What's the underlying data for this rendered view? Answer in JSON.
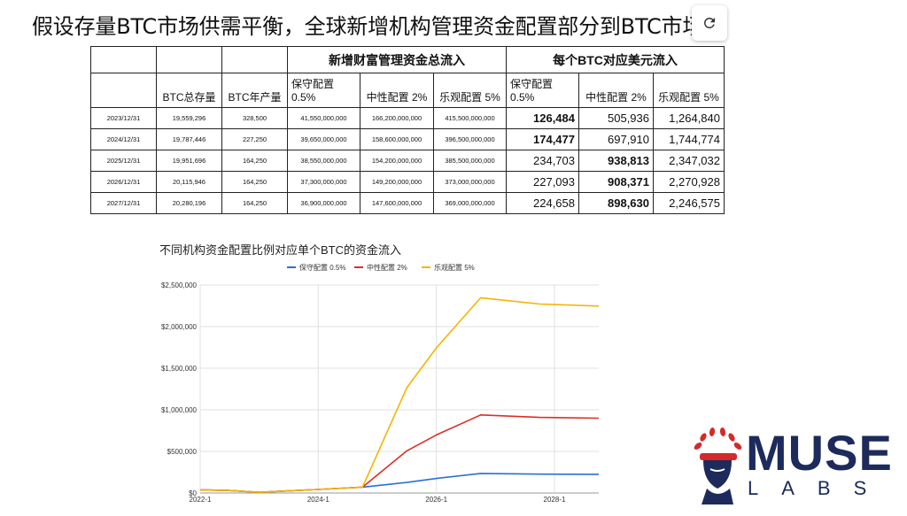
{
  "title": "假设存量BTC市场供需平衡，全球新增机构管理资金配置部分到BTC市场",
  "reload_icon": "reload-icon",
  "table": {
    "group_headers": [
      "新增财富管理资金总流入",
      "每个BTC对应美元流入"
    ],
    "col_headers": [
      "",
      "BTC总存量",
      "BTC年产量",
      "保守配置 0.5%",
      "中性配置 2%",
      "乐观配置 5%",
      "保守配置 0.5%",
      "中性配置 2%",
      "乐观配置 5%"
    ],
    "rows": [
      {
        "date": "2023/12/31",
        "stock": "19,559,296",
        "output": "328,500",
        "f1": "41,550,000,000",
        "f2": "166,200,000,000",
        "f3": "415,500,000,000",
        "p1": "126,484",
        "p2": "505,936",
        "p3": "1,264,840",
        "bold": [
          true,
          false,
          false
        ]
      },
      {
        "date": "2024/12/31",
        "stock": "19,787,446",
        "output": "227,250",
        "f1": "39,650,000,000",
        "f2": "158,600,000,000",
        "f3": "396,500,000,000",
        "p1": "174,477",
        "p2": "697,910",
        "p3": "1,744,774",
        "bold": [
          true,
          false,
          false
        ]
      },
      {
        "date": "2025/12/31",
        "stock": "19,951,696",
        "output": "164,250",
        "f1": "38,550,000,000",
        "f2": "154,200,000,000",
        "f3": "385,500,000,000",
        "p1": "234,703",
        "p2": "938,813",
        "p3": "2,347,032",
        "bold": [
          false,
          true,
          false
        ]
      },
      {
        "date": "2026/12/31",
        "stock": "20,115,946",
        "output": "164,250",
        "f1": "37,300,000,000",
        "f2": "149,200,000,000",
        "f3": "373,000,000,000",
        "p1": "227,093",
        "p2": "908,371",
        "p3": "2,270,928",
        "bold": [
          false,
          true,
          false
        ]
      },
      {
        "date": "2027/12/31",
        "stock": "20,280,196",
        "output": "164,250",
        "f1": "36,900,000,000",
        "f2": "147,600,000,000",
        "f3": "369,000,000,000",
        "p1": "224,658",
        "p2": "898,630",
        "p3": "2,246,575",
        "bold": [
          false,
          true,
          false
        ]
      }
    ]
  },
  "chart_data": {
    "type": "line",
    "title": "不同机构资金配置比例对应单个BTC的资金流入",
    "legend_position": "top",
    "x_ticks": [
      "2022-1",
      "2024-1",
      "2026-1",
      "2028-1"
    ],
    "y_ticks": [
      "$0",
      "$500,000",
      "$1,000,000",
      "$1,500,000",
      "$2,000,000",
      "$2,500,000"
    ],
    "ylim": [
      0,
      2500000
    ],
    "xlim": [
      2022.0,
      2028.75
    ],
    "grid": true,
    "x": [
      2022.0,
      2022.5,
      2023.0,
      2023.5,
      2024.0,
      2024.75,
      2025.5,
      2026.0,
      2026.75,
      2027.75,
      2028.75
    ],
    "series": [
      {
        "name": "保守配置 0.5%",
        "color": "#2b6fd6",
        "values": [
          38000,
          30000,
          8000,
          25000,
          43000,
          70000,
          126484,
          174477,
          234703,
          227093,
          224658
        ]
      },
      {
        "name": "中性配置 2%",
        "color": "#d93025",
        "values": [
          38000,
          30000,
          8000,
          25000,
          43000,
          70000,
          505936,
          697910,
          938813,
          908371,
          898630
        ]
      },
      {
        "name": "乐观配置 5%",
        "color": "#f4b400",
        "values": [
          38000,
          30000,
          8000,
          25000,
          43000,
          70000,
          1264840,
          1744774,
          2347032,
          2270928,
          2246575
        ]
      }
    ]
  },
  "logo": {
    "word": "MUSE",
    "sub": "LABS",
    "color": "#1c2a5c",
    "accent": "#d42a2a"
  }
}
